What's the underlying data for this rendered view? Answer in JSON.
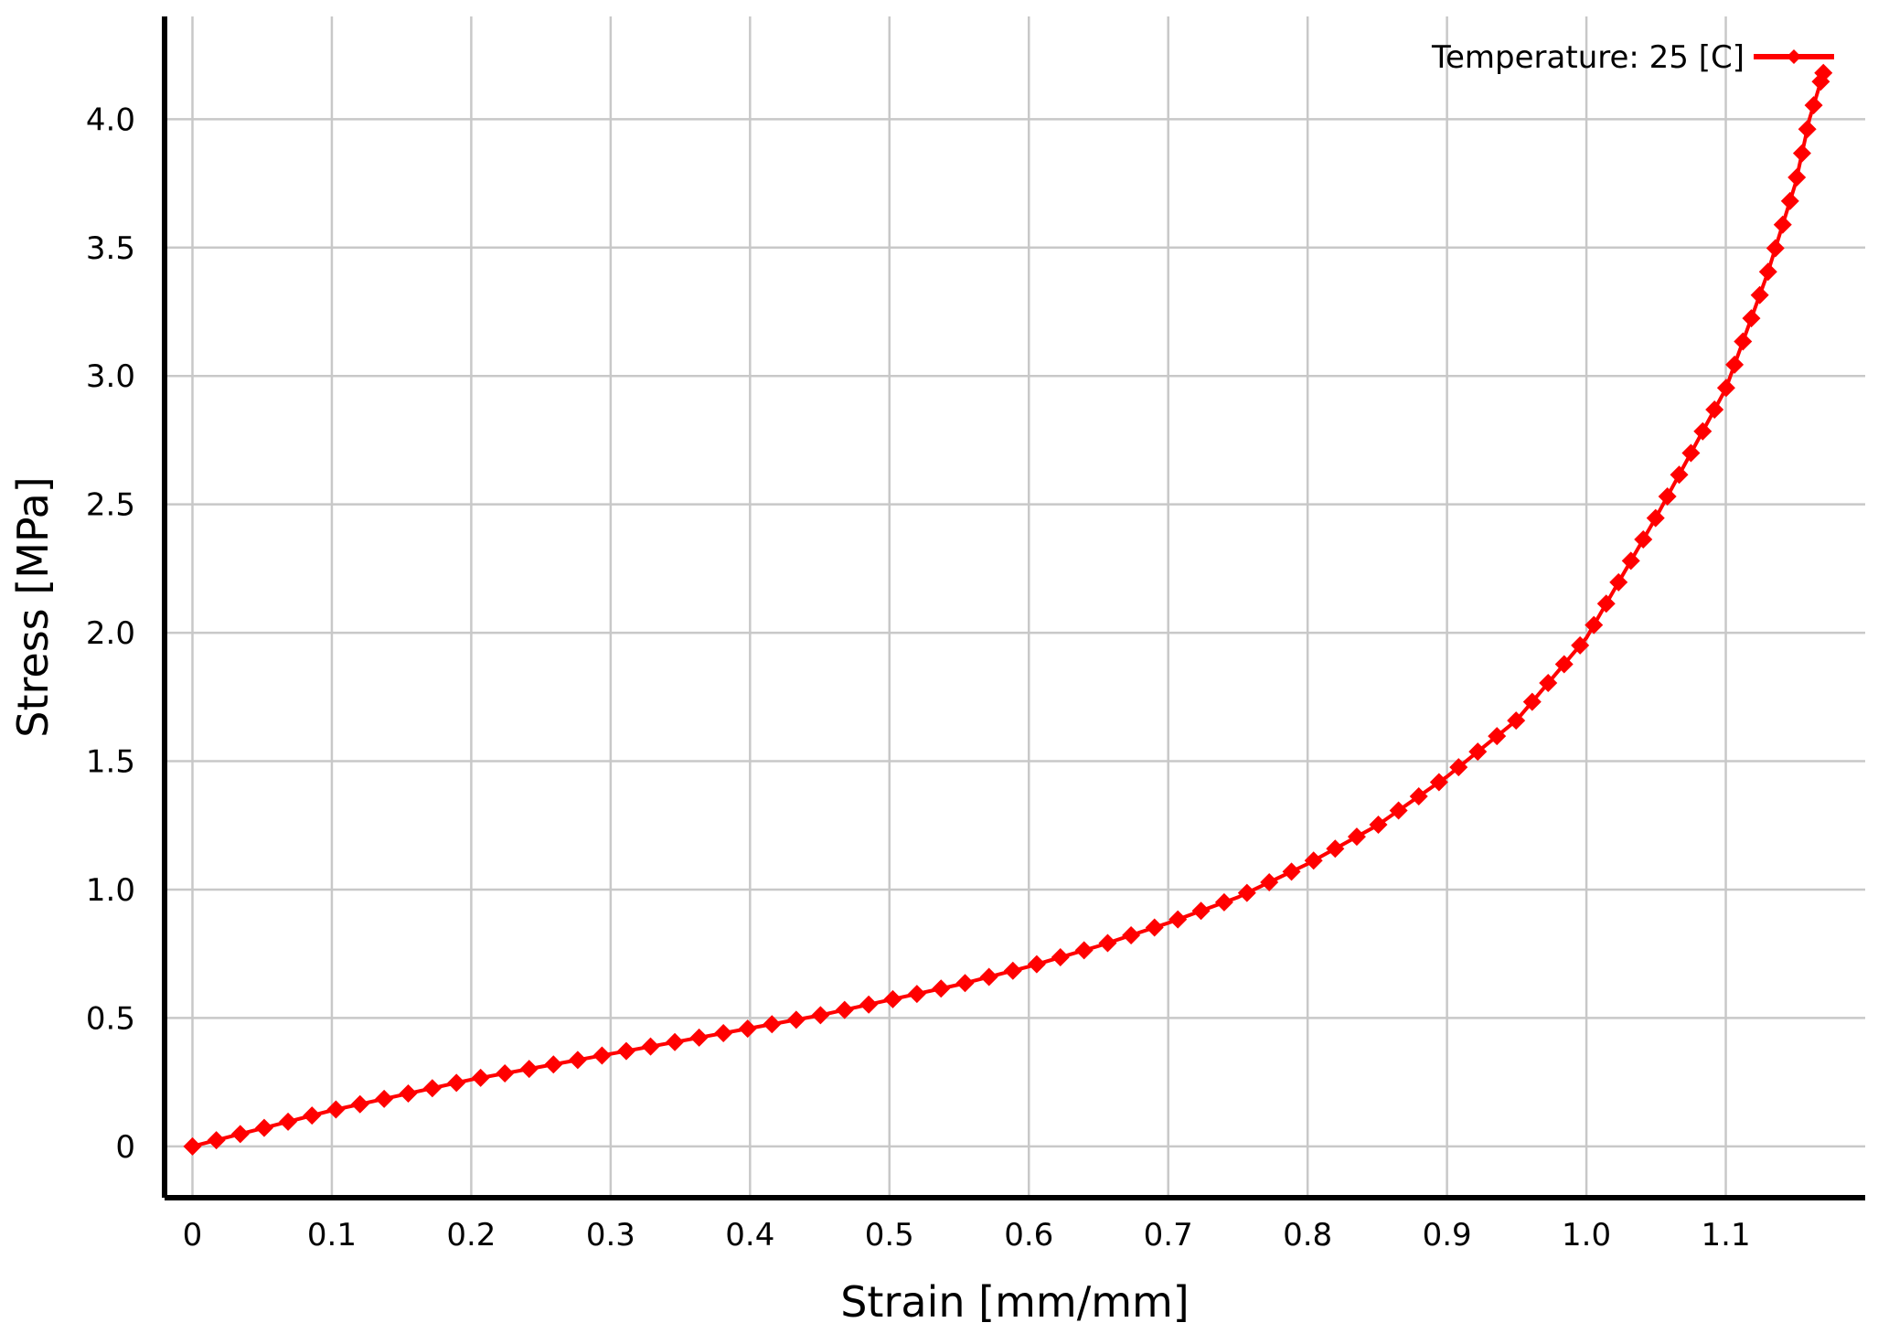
{
  "chart_data": {
    "type": "line",
    "title": "",
    "xlabel": "Strain [mm/mm]",
    "ylabel": "Stress [MPa]",
    "xlim": [
      -0.02,
      1.2
    ],
    "ylim": [
      -0.2,
      4.4
    ],
    "x_ticks": [
      0,
      0.1,
      0.2,
      0.3,
      0.4,
      0.5,
      0.6,
      0.7,
      0.8,
      0.9,
      1.0,
      1.1
    ],
    "x_tick_labels": [
      "0",
      "0.1",
      "0.2",
      "0.3",
      "0.4",
      "0.5",
      "0.6",
      "0.7",
      "0.8",
      "0.9",
      "1.0",
      "1.1"
    ],
    "y_ticks": [
      0,
      0.5,
      1.0,
      1.5,
      2.0,
      2.5,
      3.0,
      3.5,
      4.0
    ],
    "y_tick_labels": [
      "0",
      "0.5",
      "1.0",
      "1.5",
      "2.0",
      "2.5",
      "3.0",
      "3.5",
      "4.0"
    ],
    "grid": true,
    "legend_position": "top-right",
    "marker": "diamond",
    "series": [
      {
        "name": "Temperature: 25 [C]",
        "color": "#ff0000",
        "x": [
          0,
          0.05,
          0.1,
          0.15,
          0.2,
          0.25,
          0.3,
          0.35,
          0.4,
          0.45,
          0.5,
          0.55,
          0.6,
          0.65,
          0.7,
          0.75,
          0.8,
          0.85,
          0.9,
          0.95,
          1.0,
          1.05,
          1.1,
          1.13,
          1.15,
          1.16,
          1.17
        ],
        "y": [
          0,
          0.07,
          0.14,
          0.2,
          0.26,
          0.31,
          0.36,
          0.41,
          0.46,
          0.51,
          0.57,
          0.63,
          0.7,
          0.78,
          0.87,
          0.97,
          1.1,
          1.25,
          1.44,
          1.66,
          1.98,
          2.45,
          2.95,
          3.4,
          3.75,
          4.0,
          4.18
        ]
      }
    ]
  }
}
